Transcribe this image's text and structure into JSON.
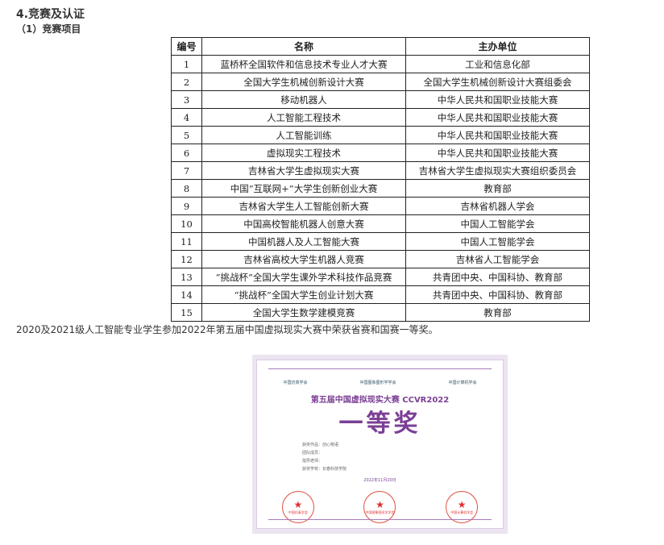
{
  "section_title": "4.竞赛及认证",
  "subsection_title": "（1）竞赛项目",
  "table": {
    "headers": [
      "编号",
      "名称",
      "主办单位"
    ],
    "rows": [
      [
        "1",
        "蓝桥杯全国软件和信息技术专业人才大赛",
        "工业和信息化部"
      ],
      [
        "2",
        "全国大学生机械创新设计大赛",
        "全国大学生机械创新设计大赛组委会"
      ],
      [
        "3",
        "移动机器人",
        "中华人民共和国职业技能大赛"
      ],
      [
        "4",
        "人工智能工程技术",
        "中华人民共和国职业技能大赛"
      ],
      [
        "5",
        "人工智能训练",
        "中华人民共和国职业技能大赛"
      ],
      [
        "6",
        "虚拟现实工程技术",
        "中华人民共和国职业技能大赛"
      ],
      [
        "7",
        "吉林省大学生虚拟现实大赛",
        "吉林省大学生虚拟现实大赛组织委员会"
      ],
      [
        "8",
        "中国“互联网+”大学生创新创业大赛",
        "教育部"
      ],
      [
        "9",
        "吉林省大学生人工智能创新大赛",
        "吉林省机器人学会"
      ],
      [
        "10",
        "中国高校智能机器人创意大赛",
        "中国人工智能学会"
      ],
      [
        "11",
        "中国机器人及人工智能大赛",
        "中国人工智能学会"
      ],
      [
        "12",
        "吉林省高校大学生机器人竞赛",
        "吉林省人工智能学会"
      ],
      [
        "13",
        "“挑战杯”全国大学生课外学术科技作品竞赛",
        "共青团中央、中国科协、教育部"
      ],
      [
        "14",
        "“挑战杯”全国大学生创业计划大赛",
        "共青团中央、中国科协、教育部"
      ],
      [
        "15",
        "全国大学生数学建模竞赛",
        "教育部"
      ]
    ]
  },
  "paragraph": "2020及2021级人工智能专业学生参加2022年第五届中国虚拟现实大赛中荣获省赛和国赛一等奖。",
  "certificate": {
    "logos": [
      "中国仿真学会",
      "中国图象图形学学会",
      "中国计算机学会"
    ],
    "title": "第五届中国虚拟现实大赛 CCVR2022",
    "award": "一等奖",
    "info": [
      "获奖作品：创心物语",
      "团队成员：",
      "指导老师：",
      "获奖学校：长春科技学院"
    ],
    "date": "2022年11月20日",
    "seals": [
      "中国仿真学会",
      "中国图象图形学学会",
      "中国计算机学会"
    ],
    "accent": "#7b3f95"
  }
}
